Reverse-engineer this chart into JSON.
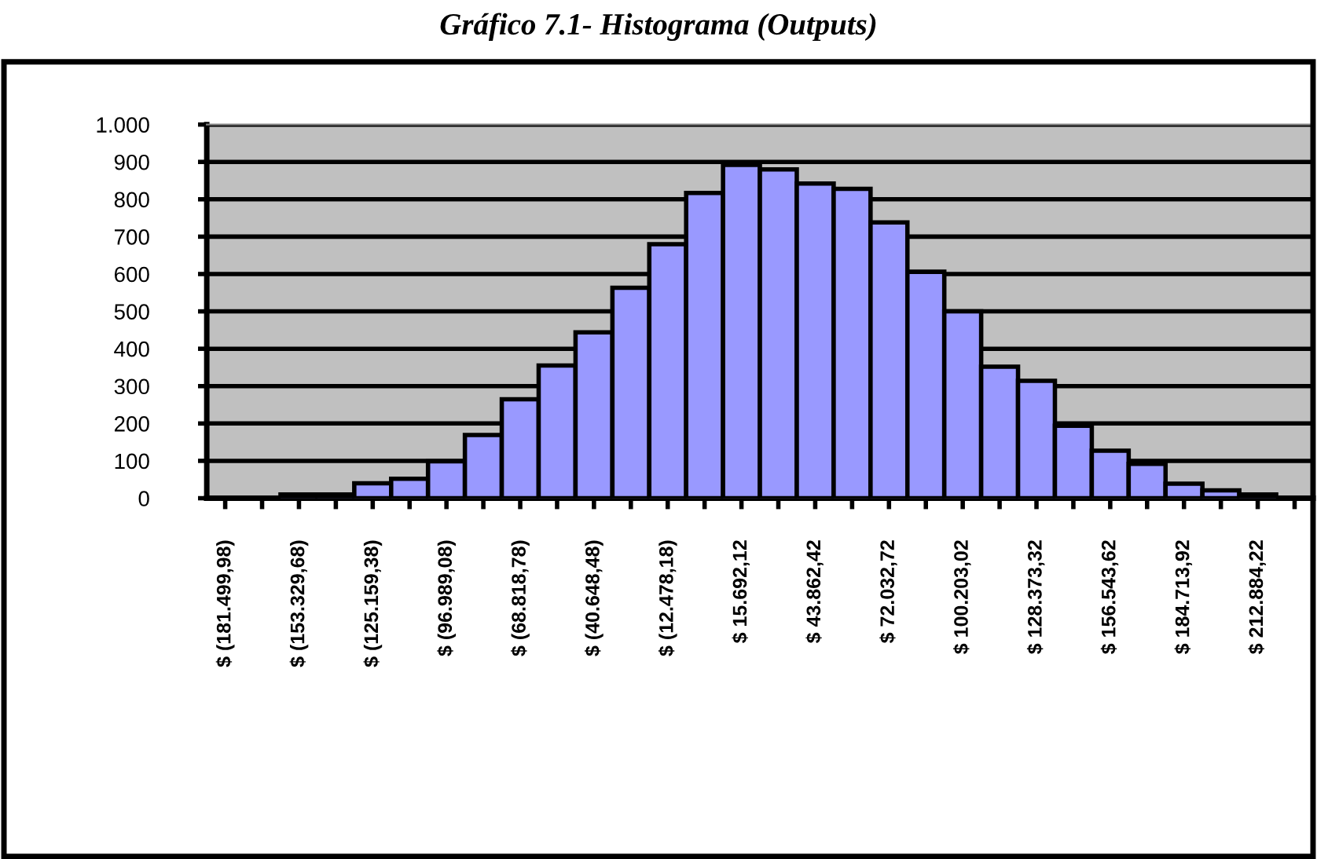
{
  "chart_data": {
    "type": "bar",
    "title": "Gráfico 7.1- Histograma (Outputs)",
    "categories": [
      "$ (181.499,98)",
      null,
      "$ (153.329,68)",
      null,
      "$ (125.159,38)",
      null,
      "$ (96.989,08)",
      null,
      "$ (68.818,78)",
      null,
      "$ (40.648,48)",
      null,
      "$ (12.478,18)",
      null,
      "$ 15.692,12",
      null,
      "$ 43.862,42",
      null,
      "$ 72.032,72",
      null,
      "$ 100.203,02",
      null,
      "$ 128.373,32",
      null,
      "$ 156.543,62",
      null,
      "$ 184.713,92",
      null,
      "$ 212.884,22",
      null
    ],
    "values": [
      0,
      0,
      10,
      10,
      40,
      52,
      99,
      169,
      265,
      355,
      444,
      563,
      680,
      817,
      892,
      880,
      842,
      828,
      738,
      606,
      500,
      352,
      314,
      194,
      127,
      92,
      39,
      21,
      10,
      0
    ],
    "color": "#9999ff",
    "ylim": [
      0,
      1000
    ],
    "yticks": [
      0,
      100,
      200,
      300,
      400,
      500,
      600,
      700,
      800,
      900,
      {
        "value": 1000,
        "label": "1.000"
      }
    ],
    "grid": "y"
  }
}
